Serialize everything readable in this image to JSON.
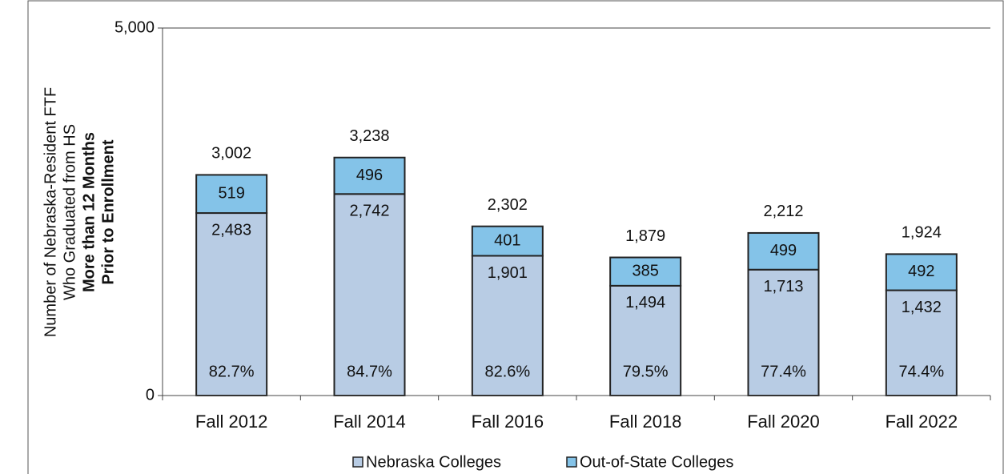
{
  "chart_data": {
    "type": "stacked_bar",
    "ylabel": [
      "Number of Nebraska-Resident FTF",
      "Who Graduated from HS",
      "More than 12 Months",
      "Prior to Enrollment"
    ],
    "categories": [
      "Fall 2012",
      "Fall 2014",
      "Fall 2016",
      "Fall 2018",
      "Fall 2020",
      "Fall 2022"
    ],
    "series": [
      {
        "name": "Nebraska Colleges",
        "color": "#b8cce4",
        "values": [
          2483,
          2742,
          1901,
          1494,
          1713,
          1432
        ],
        "value_labels": [
          "2,483",
          "2,742",
          "1,901",
          "1,494",
          "1,713",
          "1,432"
        ]
      },
      {
        "name": "Out-of-State Colleges",
        "color": "#84c3e8",
        "values": [
          519,
          496,
          401,
          385,
          499,
          492
        ]
      }
    ],
    "totals": {
      "values": [
        3002,
        3238,
        2302,
        1879,
        2212,
        1924
      ],
      "value_labels": [
        "3,002",
        "3,238",
        "2,302",
        "1,879",
        "2,212",
        "1,924"
      ]
    },
    "shares": {
      "values": [
        82.7,
        84.7,
        82.6,
        79.5,
        77.4,
        74.4
      ],
      "value_labels": [
        "82.7%",
        "84.7%",
        "82.6%",
        "79.5%",
        "77.4%",
        "74.4%"
      ]
    },
    "ylim": [
      0,
      5000
    ],
    "yticks": [
      0,
      {
        "value": 5000,
        "label": "5,000"
      }
    ],
    "grid": true,
    "legend": "bottom"
  }
}
